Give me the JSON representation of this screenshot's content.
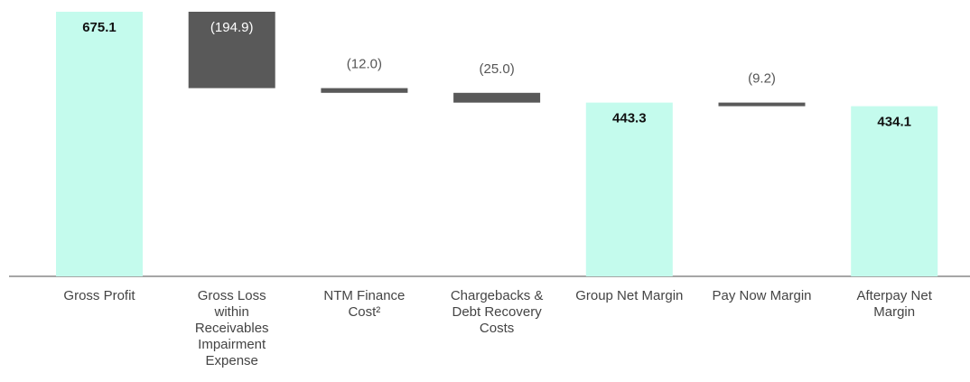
{
  "chart_data": {
    "type": "waterfall",
    "categories": [
      "Gross Profit",
      "Gross Loss within Receivables Impairment Expense",
      "NTM Finance Cost²",
      "Chargebacks & Debt Recovery Costs",
      "Group Net Margin",
      "Pay Now Margin",
      "Afterpay Net Margin"
    ],
    "values": [
      675.1,
      -194.9,
      -12.0,
      -25.0,
      443.3,
      -9.2,
      434.1
    ],
    "value_labels": [
      "675.1",
      "(194.9)",
      "(12.0)",
      "(25.0)",
      "443.3",
      "(9.2)",
      "434.1"
    ],
    "measure": [
      "absolute",
      "relative",
      "relative",
      "relative",
      "absolute",
      "relative",
      "absolute"
    ],
    "total_color": "#c4fbed",
    "delta_color": "#595959"
  }
}
